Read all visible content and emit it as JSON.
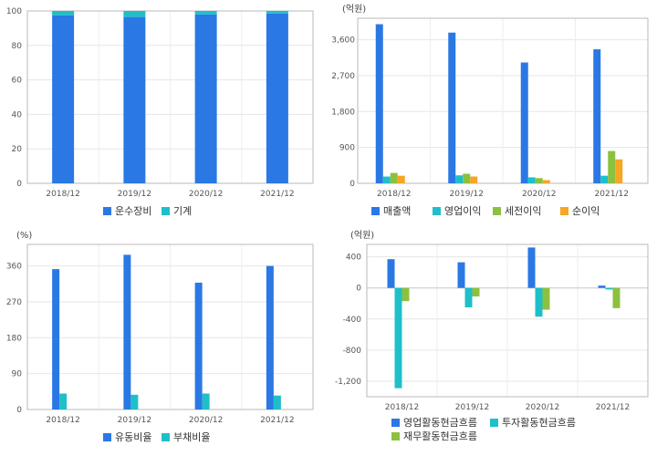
{
  "chart_data": [
    {
      "id": "composition",
      "type": "bar",
      "stacked": true,
      "unit": "",
      "categories": [
        "2018/12",
        "2019/12",
        "2020/12",
        "2021/12"
      ],
      "ylim": [
        0,
        100
      ],
      "yticks": [
        0,
        20,
        40,
        60,
        80,
        100
      ],
      "grid": true,
      "legend": "bottom",
      "series": [
        {
          "name": "운수장비",
          "color": "#2a78e4",
          "values": [
            97.5,
            96.5,
            98.0,
            98.5
          ]
        },
        {
          "name": "기계",
          "color": "#1fbfc9",
          "values": [
            2.5,
            3.5,
            2.0,
            1.5
          ]
        }
      ]
    },
    {
      "id": "income",
      "type": "bar",
      "unit": "(억원)",
      "categories": [
        "2018/12",
        "2019/12",
        "2020/12",
        "2021/12"
      ],
      "ylim": [
        0,
        4140
      ],
      "yticks": [
        0,
        900,
        1800,
        2700,
        3600
      ],
      "ytick_labels": [
        "0",
        "900",
        "1,800",
        "2,700",
        "3,600"
      ],
      "grid": true,
      "legend": "bottom",
      "series": [
        {
          "name": "매출액",
          "color": "#2a78e4",
          "values": [
            3990,
            3780,
            3030,
            3360
          ]
        },
        {
          "name": "영업이익",
          "color": "#1fbfc9",
          "values": [
            170,
            200,
            150,
            190
          ]
        },
        {
          "name": "세전이익",
          "color": "#8cc13f",
          "values": [
            260,
            240,
            130,
            810
          ]
        },
        {
          "name": "순이익",
          "color": "#f5a623",
          "values": [
            190,
            170,
            80,
            600
          ]
        }
      ]
    },
    {
      "id": "ratios",
      "type": "bar",
      "unit": "(%)",
      "categories": [
        "2018/12",
        "2019/12",
        "2020/12",
        "2021/12"
      ],
      "ylim": [
        0,
        414
      ],
      "yticks": [
        0,
        90,
        180,
        270,
        360
      ],
      "ytick_labels": [
        "0",
        "90",
        "180",
        "270",
        "360"
      ],
      "grid": true,
      "legend": "bottom",
      "series": [
        {
          "name": "유동비율",
          "color": "#2a78e4",
          "values": [
            352,
            388,
            318,
            360
          ]
        },
        {
          "name": "부채비율",
          "color": "#1fbfc9",
          "values": [
            40,
            37,
            40,
            35
          ]
        }
      ]
    },
    {
      "id": "cashflow",
      "type": "bar",
      "unit": "(억원)",
      "categories": [
        "2018/12",
        "2019/12",
        "2020/12",
        "2021/12"
      ],
      "ylim": [
        -1400,
        560
      ],
      "yticks": [
        -1200,
        -800,
        -400,
        0,
        400
      ],
      "ytick_labels": [
        "-1,200",
        "-800",
        "-400",
        "0",
        "400"
      ],
      "grid": true,
      "legend": "bottom",
      "series": [
        {
          "name": "영업활동현금흐름",
          "color": "#2a78e4",
          "values": [
            370,
            330,
            520,
            30
          ]
        },
        {
          "name": "투자활동현금흐름",
          "color": "#1fbfc9",
          "values": [
            -1290,
            -250,
            -370,
            -20
          ]
        },
        {
          "name": "재무활동현금흐름",
          "color": "#8cc13f",
          "values": [
            -170,
            -110,
            -280,
            -260
          ]
        }
      ]
    }
  ]
}
